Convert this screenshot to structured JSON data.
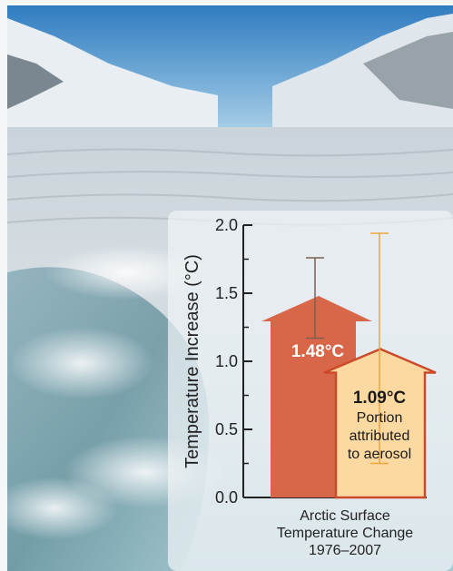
{
  "chart_data": {
    "type": "bar",
    "categories": [
      "Arctic Surface Temperature Change 1976–2007"
    ],
    "xlabel_lines": [
      "Arctic Surface",
      "Temperature Change",
      "1976–2007"
    ],
    "ylabel": "Temperature Increase (°C)",
    "ylim": [
      0,
      2.0
    ],
    "yticks": [
      "0.0",
      "0.5",
      "1.0",
      "1.5",
      "2.0"
    ],
    "ytick_values": [
      0,
      0.5,
      1.0,
      1.5,
      2.0
    ],
    "bars": [
      {
        "label": "1.48°C",
        "value": 1.48,
        "error_low": 1.17,
        "error_high": 1.76,
        "color": "#d8674a",
        "error_color": "#7a6150"
      },
      {
        "label": "1.09°C",
        "value": 1.09,
        "error_low": 0.25,
        "error_high": 1.94,
        "color": "#fdd9a2",
        "border_color": "#cc4a2a",
        "error_color": "#f2a43c",
        "annotation": [
          "Portion",
          "attributed",
          "to aerosol"
        ]
      }
    ]
  },
  "colors": {
    "sky": "#5d9fd3",
    "panel": "#eef3f5"
  },
  "icons": {
    "background": "glacier-photo"
  }
}
